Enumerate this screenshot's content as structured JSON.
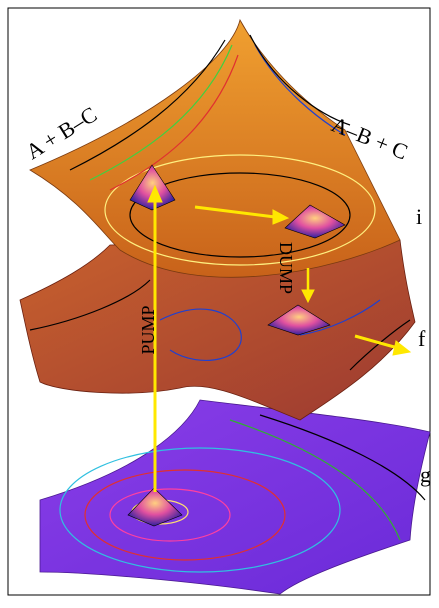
{
  "surfaces": {
    "upper": {
      "left_label": "A + B–C",
      "right_label": "A–B + C",
      "name": "i"
    },
    "middle": {
      "name": "f"
    },
    "lower": {
      "name": "g"
    }
  },
  "arrows": {
    "pump": "PUMP",
    "dump": "DUMP"
  }
}
